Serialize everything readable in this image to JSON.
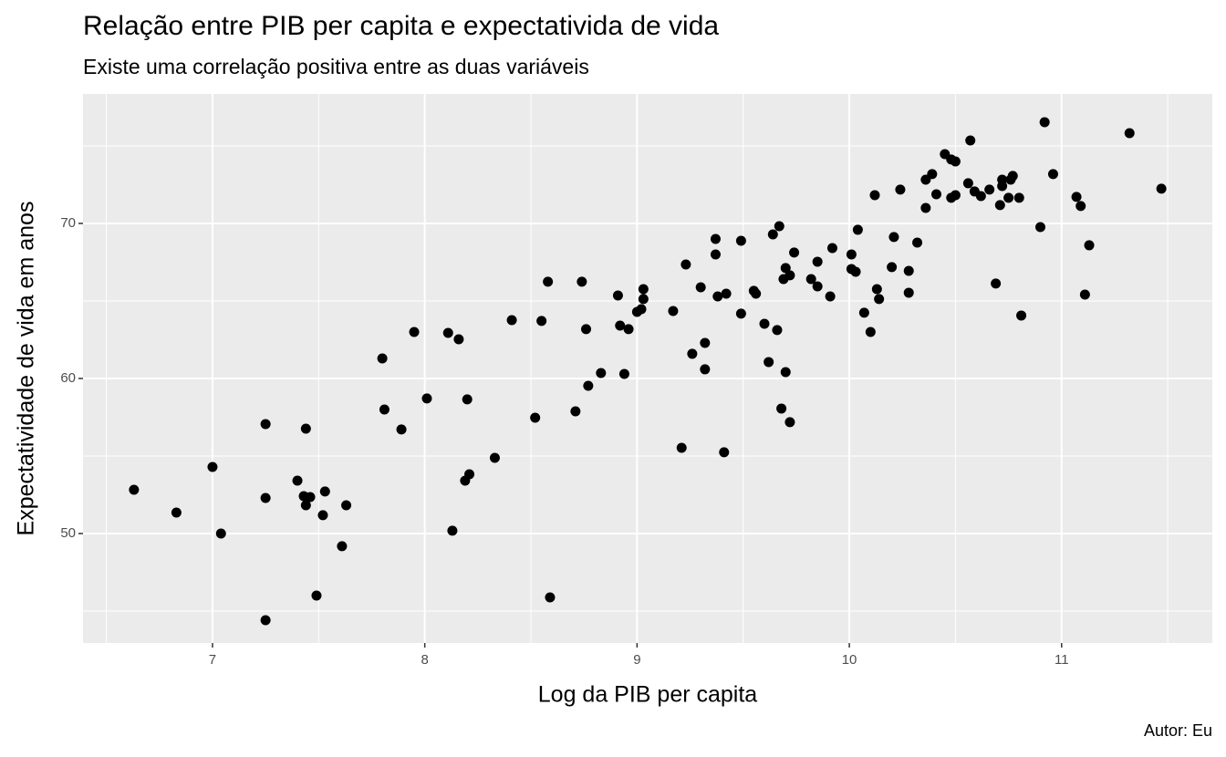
{
  "chart_data": {
    "type": "scatter",
    "title": "Relação entre PIB per capita e expectativida de vida",
    "subtitle": "Existe uma correlação positiva entre as duas variáveis",
    "x_label": "Log da PIB per capita",
    "y_label": "Expectatividade de vida em anos",
    "caption": "Autor: Eu",
    "color": "#000000",
    "grid": true,
    "xlim": [
      6.39,
      11.71
    ],
    "ylim": [
      42.94,
      78.35
    ],
    "xticks": [
      7,
      8,
      9,
      10,
      11
    ],
    "yticks": [
      50,
      60,
      70
    ],
    "x_minor_ticks": [
      6.5,
      7.5,
      8.5,
      9.5,
      10.5,
      11.5
    ],
    "y_minor_ticks": [
      45,
      55,
      65,
      75
    ],
    "x": [
      6.63,
      6.83,
      7.0,
      7.04,
      7.25,
      7.25,
      7.25,
      7.4,
      7.44,
      7.43,
      7.44,
      7.46,
      7.52,
      7.53,
      7.49,
      7.61,
      7.63,
      7.8,
      7.81,
      7.89,
      7.95,
      8.01,
      8.11,
      8.13,
      8.16,
      8.19,
      8.2,
      8.21,
      8.33,
      8.41,
      8.52,
      8.55,
      8.58,
      8.59,
      8.71,
      8.74,
      8.76,
      8.77,
      8.83,
      8.91,
      8.92,
      8.94,
      8.96,
      9.0,
      9.02,
      9.03,
      9.03,
      9.17,
      9.21,
      9.23,
      9.26,
      9.3,
      9.32,
      9.32,
      9.37,
      9.37,
      9.38,
      9.41,
      9.42,
      9.49,
      9.49,
      9.55,
      9.56,
      9.6,
      9.62,
      9.64,
      9.66,
      9.67,
      9.68,
      9.69,
      9.7,
      9.7,
      9.72,
      9.72,
      9.74,
      9.82,
      9.85,
      9.85,
      9.91,
      9.92,
      10.01,
      10.01,
      10.03,
      10.04,
      10.07,
      10.1,
      10.12,
      10.13,
      10.14,
      10.2,
      10.21,
      10.24,
      10.28,
      10.28,
      10.32,
      10.36,
      10.36,
      10.39,
      10.41,
      10.45,
      10.48,
      10.48,
      10.5,
      10.5,
      10.56,
      10.57,
      10.59,
      10.62,
      10.66,
      10.69,
      10.71,
      10.72,
      10.72,
      10.75,
      10.76,
      10.77,
      10.8,
      10.81,
      10.9,
      10.92,
      10.96,
      11.07,
      11.09,
      11.11,
      11.13,
      11.32,
      11.47
    ],
    "values": [
      52.82,
      51.35,
      54.29,
      50.0,
      57.06,
      52.29,
      44.41,
      53.41,
      56.76,
      52.41,
      51.82,
      52.35,
      51.18,
      52.71,
      46.0,
      49.18,
      51.82,
      61.29,
      58.0,
      56.71,
      63.0,
      58.71,
      62.94,
      50.18,
      62.53,
      53.41,
      58.65,
      53.82,
      54.88,
      63.76,
      57.47,
      63.71,
      66.24,
      45.88,
      57.88,
      66.24,
      63.18,
      59.53,
      60.35,
      65.35,
      63.41,
      60.29,
      63.18,
      64.29,
      64.47,
      65.76,
      65.12,
      64.35,
      55.53,
      67.35,
      61.59,
      65.88,
      62.29,
      60.59,
      69.0,
      68.0,
      65.29,
      55.24,
      65.47,
      68.88,
      64.18,
      65.65,
      65.47,
      63.53,
      61.06,
      69.29,
      63.12,
      69.82,
      58.06,
      66.41,
      67.12,
      60.41,
      57.18,
      66.65,
      68.12,
      66.41,
      67.53,
      65.94,
      65.29,
      68.41,
      68.0,
      67.06,
      66.88,
      69.59,
      64.24,
      63.0,
      71.82,
      65.76,
      65.12,
      67.18,
      69.12,
      72.18,
      66.94,
      65.53,
      68.76,
      72.82,
      71.0,
      73.18,
      71.88,
      74.47,
      71.65,
      74.12,
      74.0,
      71.82,
      72.59,
      75.35,
      72.06,
      71.76,
      72.18,
      66.12,
      71.18,
      72.41,
      72.82,
      71.65,
      72.82,
      73.06,
      71.65,
      64.06,
      69.76,
      76.53,
      73.18,
      71.71,
      71.12,
      65.41,
      68.59,
      75.82,
      72.24
    ]
  }
}
